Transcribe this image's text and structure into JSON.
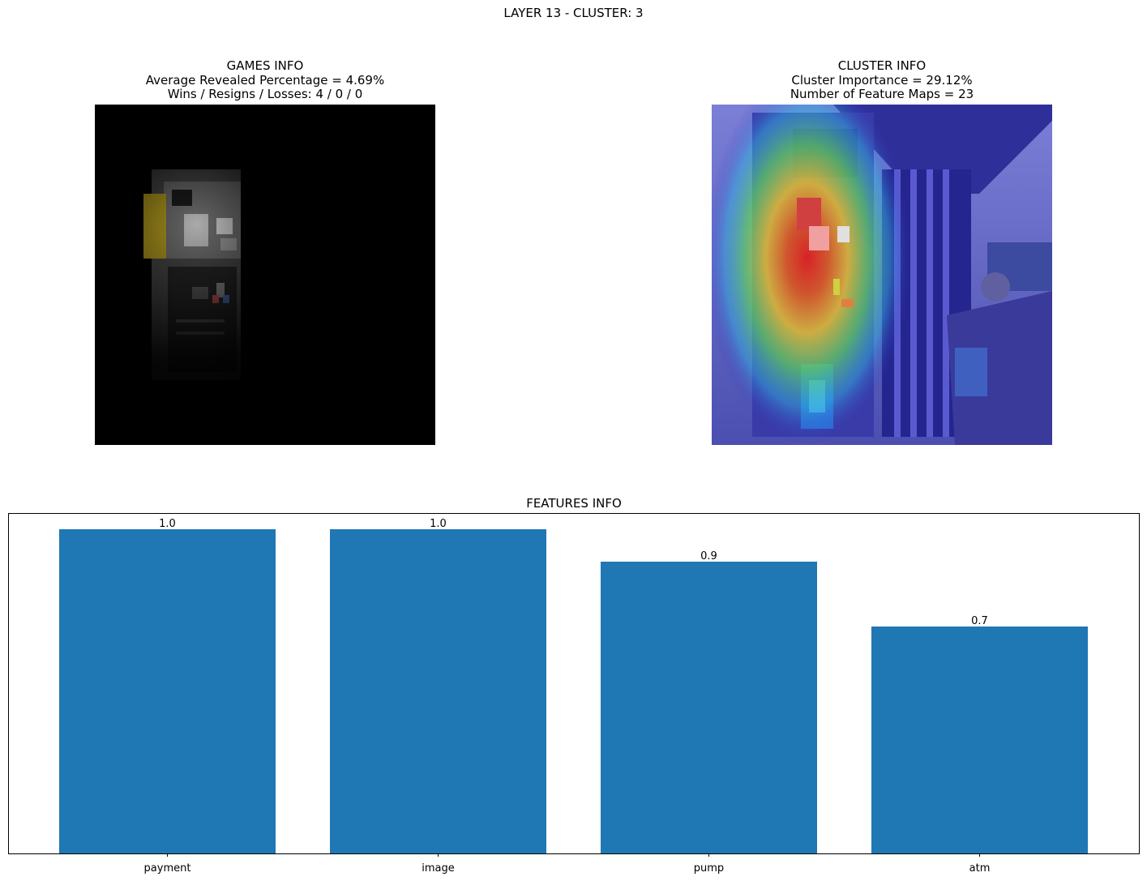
{
  "suptitle": "LAYER 13 - CLUSTER: 3",
  "games_info": {
    "title": "GAMES INFO",
    "line1": "Average Revealed Percentage = 4.69%",
    "line2": "Wins / Resigns / Losses: 4 / 0 / 0"
  },
  "cluster_info": {
    "title": "CLUSTER INFO",
    "line1": "Cluster Importance = 29.12%",
    "line2": "Number of Feature Maps = 23"
  },
  "chart_data": {
    "type": "bar",
    "title": "FEATURES INFO",
    "categories": [
      "payment",
      "image",
      "pump",
      "atm"
    ],
    "values": [
      1.0,
      1.0,
      0.9,
      0.7
    ],
    "value_labels": [
      "1.0",
      "1.0",
      "0.9",
      "0.7"
    ],
    "xlabel": "",
    "ylabel": "",
    "ylim": [
      0,
      1.05
    ],
    "bar_color": "#1f77b4",
    "grid": false,
    "y_ticks_visible": false
  }
}
